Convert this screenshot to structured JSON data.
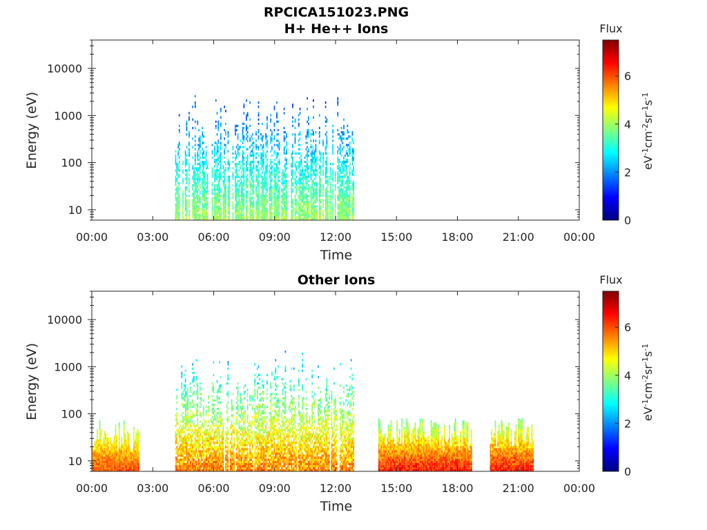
{
  "filename_title": "RPCICA151023.PNG",
  "colorbar": {
    "label": "Flux",
    "unit_base": "eV",
    "unit_sup1": "-1",
    "unit_mid1": "cm",
    "unit_sup2": "-2",
    "unit_mid2": "sr",
    "unit_sup3": "-1",
    "unit_mid3": "s",
    "unit_sup4": "-1",
    "ticks": [
      "0",
      "2",
      "4",
      "6"
    ],
    "tick_values": [
      0,
      2,
      4,
      6
    ],
    "range": [
      0,
      7.5
    ],
    "colormap": "jet",
    "colors": [
      "#00007f",
      "#0000ff",
      "#007fff",
      "#00ffff",
      "#7fff7f",
      "#ffff00",
      "#ff7f00",
      "#ff0000",
      "#7f0000"
    ]
  },
  "chart_data": [
    {
      "type": "heatmap",
      "title": "H+ He++ Ions",
      "xlabel": "Time",
      "ylabel": "Energy (eV)",
      "xticks": [
        "00:00",
        "03:00",
        "06:00",
        "09:00",
        "12:00",
        "15:00",
        "18:00",
        "21:00",
        "00:00"
      ],
      "xlim_hours": [
        0,
        24
      ],
      "yticks": [
        "10",
        "100",
        "1000",
        "10000"
      ],
      "ytick_values": [
        10,
        100,
        1000,
        10000
      ],
      "ylim": [
        6,
        40000
      ],
      "yscale": "log",
      "grid": false,
      "activity": [
        {
          "t_start": 4.1,
          "t_end": 12.9,
          "e_min": 6,
          "e_max": 3000,
          "flux_min": 1.5,
          "flux_max": 4.5,
          "density": 0.45
        }
      ]
    },
    {
      "type": "heatmap",
      "title": "Other Ions",
      "xlabel": "Time",
      "ylabel": "Energy (eV)",
      "xticks": [
        "00:00",
        "03:00",
        "06:00",
        "09:00",
        "12:00",
        "15:00",
        "18:00",
        "21:00",
        "00:00"
      ],
      "xlim_hours": [
        0,
        24
      ],
      "yticks": [
        "10",
        "100",
        "1000",
        "10000"
      ],
      "ytick_values": [
        10,
        100,
        1000,
        10000
      ],
      "ylim": [
        6,
        40000
      ],
      "yscale": "log",
      "grid": false,
      "activity": [
        {
          "t_start": 0.0,
          "t_end": 2.3,
          "e_min": 6,
          "e_max": 80,
          "flux_min": 3.8,
          "flux_max": 6.5,
          "density": 0.95
        },
        {
          "t_start": 4.1,
          "t_end": 12.9,
          "e_min": 6,
          "e_max": 2000,
          "flux_min": 2.5,
          "flux_max": 6.3,
          "density": 0.7
        },
        {
          "t_start": 14.1,
          "t_end": 18.7,
          "e_min": 6,
          "e_max": 80,
          "flux_min": 3.8,
          "flux_max": 7.0,
          "density": 0.95
        },
        {
          "t_start": 19.6,
          "t_end": 21.7,
          "e_min": 6,
          "e_max": 80,
          "flux_min": 3.8,
          "flux_max": 7.0,
          "density": 0.95
        }
      ]
    }
  ]
}
